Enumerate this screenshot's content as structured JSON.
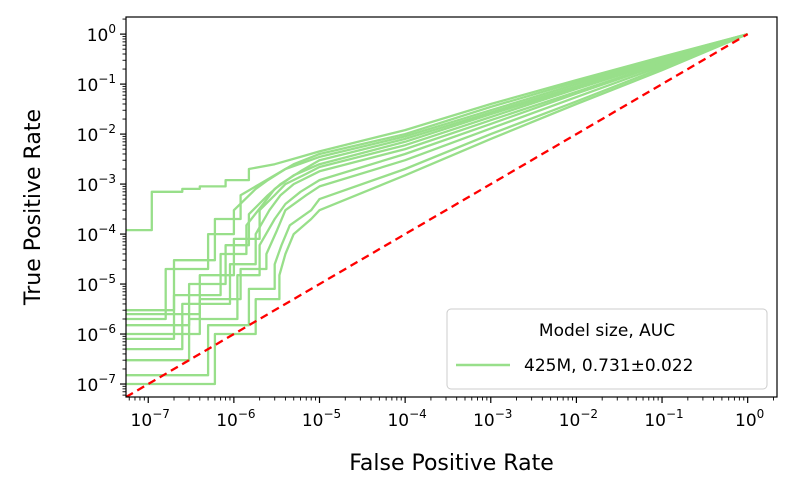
{
  "chart_data": {
    "type": "line",
    "title": "",
    "xlabel": "False Positive Rate",
    "ylabel": "True Positive Rate",
    "xscale": "log",
    "yscale": "log",
    "xlim": [
      5.5e-08,
      2.2
    ],
    "ylim": [
      5.5e-08,
      2.2
    ],
    "grid": false,
    "x_ticks": [
      {
        "base": "10",
        "exp": "−7"
      },
      {
        "base": "10",
        "exp": "−6"
      },
      {
        "base": "10",
        "exp": "−5"
      },
      {
        "base": "10",
        "exp": "−4"
      },
      {
        "base": "10",
        "exp": "−3"
      },
      {
        "base": "10",
        "exp": "−2"
      },
      {
        "base": "10",
        "exp": "−1"
      },
      {
        "base": "10",
        "exp": "0"
      }
    ],
    "y_ticks": [
      {
        "base": "10",
        "exp": "−7"
      },
      {
        "base": "10",
        "exp": "−6"
      },
      {
        "base": "10",
        "exp": "−5"
      },
      {
        "base": "10",
        "exp": "−4"
      },
      {
        "base": "10",
        "exp": "−3"
      },
      {
        "base": "10",
        "exp": "−2"
      },
      {
        "base": "10",
        "exp": "−1"
      },
      {
        "base": "10",
        "exp": "0"
      }
    ],
    "legend": {
      "placement": "lower-right",
      "title": "Model size, AUC",
      "entries": [
        {
          "label": "425M, 0.731±0.022",
          "color": "#98df8a"
        }
      ]
    },
    "reference_line": {
      "style": "dashed",
      "color": "#ff0000",
      "x": [
        5.5e-08,
        1
      ],
      "y": [
        5.5e-08,
        1
      ]
    },
    "series_color": "#98df8a",
    "series": [
      {
        "x": [
          5.5e-08,
          1.1e-07,
          1.1e-07,
          2.5e-07,
          2.5e-07,
          4e-07,
          4e-07,
          8e-07,
          8e-07,
          1.5e-06,
          1.5e-06,
          3e-06,
          6e-06,
          1e-05,
          0.0001,
          0.001,
          0.01,
          0.1,
          1
        ],
        "y": [
          0.00012,
          0.00012,
          0.0007,
          0.0007,
          0.0008,
          0.0008,
          0.0009,
          0.0009,
          0.0012,
          0.0012,
          0.002,
          0.0025,
          0.0035,
          0.0045,
          0.012,
          0.04,
          0.12,
          0.35,
          1
        ]
      },
      {
        "x": [
          5.5e-08,
          2e-07,
          2e-07,
          6e-07,
          6e-07,
          1.2e-06,
          1.2e-06,
          2e-06,
          3e-06,
          5e-06,
          1e-05,
          0.0001,
          0.001,
          0.01,
          0.1,
          1
        ],
        "y": [
          3e-06,
          3e-06,
          3e-05,
          3e-05,
          0.0002,
          0.0002,
          0.0006,
          0.001,
          0.0015,
          0.0025,
          0.004,
          0.01,
          0.035,
          0.11,
          0.34,
          1
        ]
      },
      {
        "x": [
          5.5e-08,
          1.6e-07,
          1.6e-07,
          5e-07,
          5e-07,
          1e-06,
          1e-06,
          1.8e-06,
          2.5e-06,
          4e-06,
          1e-05,
          0.0001,
          0.001,
          0.01,
          0.1,
          1
        ],
        "y": [
          2e-06,
          2e-06,
          2e-05,
          2e-05,
          0.0001,
          0.0001,
          0.0003,
          0.0008,
          0.0012,
          0.002,
          0.0035,
          0.009,
          0.03,
          0.1,
          0.32,
          1
        ]
      },
      {
        "x": [
          5.5e-08,
          3e-07,
          3e-07,
          8e-07,
          8e-07,
          1.5e-06,
          1.5e-06,
          2.5e-06,
          3.5e-06,
          6e-06,
          1e-05,
          0.0001,
          0.001,
          0.01,
          0.1,
          1
        ],
        "y": [
          1.5e-06,
          1.5e-06,
          1e-05,
          1e-05,
          6e-05,
          6e-05,
          0.00025,
          0.0006,
          0.001,
          0.0018,
          0.003,
          0.008,
          0.027,
          0.09,
          0.3,
          1
        ]
      },
      {
        "x": [
          5.5e-08,
          2e-07,
          2e-07,
          7e-07,
          7e-07,
          1.4e-06,
          1.4e-06,
          2.2e-06,
          3e-06,
          5e-06,
          1e-05,
          0.0001,
          0.001,
          0.01,
          0.1,
          1
        ],
        "y": [
          8e-07,
          8e-07,
          6e-06,
          6e-06,
          4e-05,
          4e-05,
          0.00015,
          0.0004,
          0.0008,
          0.0015,
          0.0025,
          0.007,
          0.025,
          0.085,
          0.29,
          1
        ]
      },
      {
        "x": [
          5.5e-08,
          4e-07,
          4e-07,
          1e-06,
          1e-06,
          2e-06,
          2e-06,
          3e-06,
          4e-06,
          7e-06,
          1e-05,
          0.0001,
          0.001,
          0.01,
          0.1,
          1
        ],
        "y": [
          2.5e-06,
          2.5e-06,
          1.5e-05,
          1.5e-05,
          8e-05,
          8e-05,
          0.0003,
          0.0006,
          0.001,
          0.0016,
          0.0022,
          0.006,
          0.022,
          0.08,
          0.28,
          1
        ]
      },
      {
        "x": [
          5.5e-08,
          2.5e-07,
          2.5e-07,
          9e-07,
          9e-07,
          1.8e-06,
          1.8e-06,
          2.6e-06,
          3.5e-06,
          5e-06,
          1e-05,
          0.0001,
          0.001,
          0.01,
          0.1,
          1
        ],
        "y": [
          5e-07,
          5e-07,
          4e-06,
          4e-06,
          2.5e-05,
          2.5e-05,
          0.0001,
          0.0003,
          0.0006,
          0.001,
          0.0018,
          0.005,
          0.019,
          0.07,
          0.26,
          1
        ]
      },
      {
        "x": [
          5.5e-08,
          3e-07,
          3e-07,
          1.1e-06,
          1.1e-06,
          2e-06,
          2e-06,
          3e-06,
          4e-06,
          6e-06,
          1e-05,
          0.0001,
          0.001,
          0.01,
          0.1,
          1
        ],
        "y": [
          3e-07,
          3e-07,
          2e-06,
          2e-06,
          1.5e-05,
          1.5e-05,
          6e-05,
          0.0002,
          0.0004,
          0.0007,
          0.0012,
          0.004,
          0.016,
          0.065,
          0.25,
          1
        ]
      },
      {
        "x": [
          5.5e-08,
          4e-07,
          4e-07,
          1.2e-06,
          1.2e-06,
          2.4e-06,
          2.4e-06,
          3.2e-06,
          4e-06,
          7e-06,
          1e-05,
          0.0001,
          0.001,
          0.01,
          0.1,
          1
        ],
        "y": [
          1e-06,
          1e-06,
          5e-06,
          5e-06,
          2e-05,
          2e-05,
          4e-05,
          0.00012,
          0.0003,
          0.0006,
          0.0009,
          0.003,
          0.013,
          0.055,
          0.23,
          1
        ]
      },
      {
        "x": [
          5.5e-08,
          5e-07,
          5e-07,
          1.5e-06,
          1.5e-06,
          3e-06,
          3e-06,
          3.6e-06,
          4.5e-06,
          8e-06,
          1e-05,
          0.0001,
          0.001,
          0.01,
          0.1,
          1
        ],
        "y": [
          1.5e-07,
          1.5e-07,
          1.5e-06,
          1.5e-06,
          8e-06,
          8e-06,
          2.5e-05,
          6e-05,
          0.00015,
          0.0003,
          0.0005,
          0.002,
          0.01,
          0.045,
          0.21,
          1
        ]
      },
      {
        "x": [
          5.5e-08,
          6e-07,
          6e-07,
          1.8e-06,
          1.8e-06,
          3.4e-06,
          3.4e-06,
          4e-06,
          5e-06,
          8e-06,
          1e-05,
          0.0001,
          0.001,
          0.01,
          0.1,
          1
        ],
        "y": [
          1e-07,
          1e-07,
          1e-06,
          1e-06,
          5e-06,
          5e-06,
          1.5e-05,
          4e-05,
          0.0001,
          0.0002,
          0.0003,
          0.0015,
          0.008,
          0.04,
          0.19,
          1
        ]
      }
    ]
  }
}
